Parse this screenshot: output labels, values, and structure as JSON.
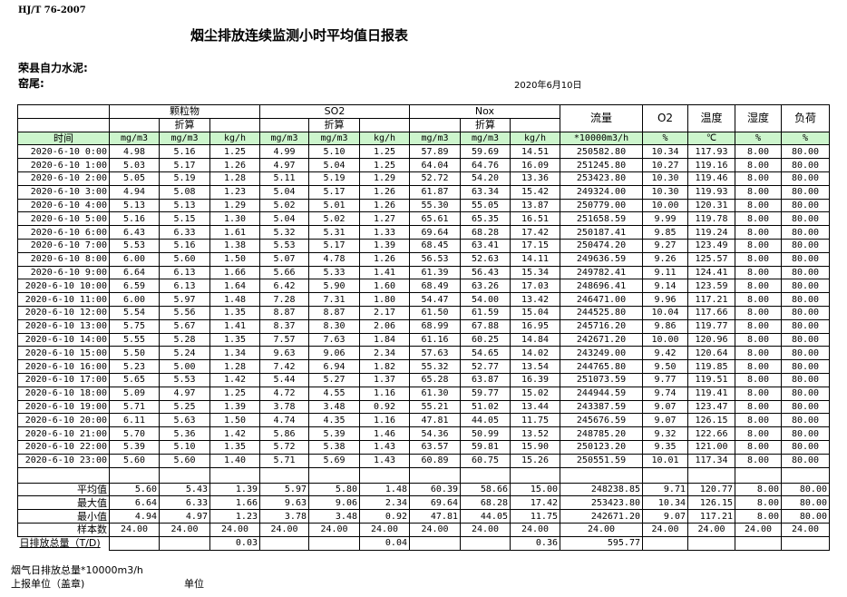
{
  "standard": "HJ/T  76-2007",
  "title": "烟尘排放连续监测小时平均值日报表",
  "company": "荣县自力水泥:",
  "kiln": "窑尾:",
  "date": "2020年6月10日",
  "header": {
    "groups": [
      "颗粒物",
      "SO2",
      "Nox"
    ],
    "converted": "折算",
    "flow": "流量",
    "o2": "O2",
    "temp": "温度",
    "humidity": "湿度",
    "load": "负荷",
    "time": "时间",
    "units": [
      "mg/m3",
      "mg/m3",
      "kg/h",
      "mg/m3",
      "mg/m3",
      "kg/h",
      "mg/m3",
      "mg/m3",
      "kg/h",
      "*10000m3/h",
      "%",
      "℃",
      "%",
      "%"
    ]
  },
  "rows": [
    [
      "2020-6-10 0:00",
      "4.98",
      "5.16",
      "1.25",
      "4.99",
      "5.10",
      "1.25",
      "57.89",
      "59.69",
      "14.51",
      "250582.80",
      "10.34",
      "117.93",
      "8.00",
      "80.00"
    ],
    [
      "2020-6-10 1:00",
      "5.03",
      "5.17",
      "1.26",
      "4.97",
      "5.04",
      "1.25",
      "64.04",
      "64.76",
      "16.09",
      "251245.80",
      "10.27",
      "119.16",
      "8.00",
      "80.00"
    ],
    [
      "2020-6-10 2:00",
      "5.05",
      "5.19",
      "1.28",
      "5.11",
      "5.19",
      "1.29",
      "52.72",
      "54.20",
      "13.36",
      "253423.80",
      "10.30",
      "119.46",
      "8.00",
      "80.00"
    ],
    [
      "2020-6-10 3:00",
      "4.94",
      "5.08",
      "1.23",
      "5.04",
      "5.17",
      "1.26",
      "61.87",
      "63.34",
      "15.42",
      "249324.00",
      "10.30",
      "119.93",
      "8.00",
      "80.00"
    ],
    [
      "2020-6-10 4:00",
      "5.13",
      "5.13",
      "1.29",
      "5.02",
      "5.01",
      "1.26",
      "55.30",
      "55.05",
      "13.87",
      "250779.00",
      "10.00",
      "120.31",
      "8.00",
      "80.00"
    ],
    [
      "2020-6-10 5:00",
      "5.16",
      "5.15",
      "1.30",
      "5.04",
      "5.02",
      "1.27",
      "65.61",
      "65.35",
      "16.51",
      "251658.59",
      "9.99",
      "119.78",
      "8.00",
      "80.00"
    ],
    [
      "2020-6-10 6:00",
      "6.43",
      "6.33",
      "1.61",
      "5.32",
      "5.31",
      "1.33",
      "69.64",
      "68.28",
      "17.42",
      "250187.41",
      "9.85",
      "119.24",
      "8.00",
      "80.00"
    ],
    [
      "2020-6-10 7:00",
      "5.53",
      "5.16",
      "1.38",
      "5.53",
      "5.17",
      "1.39",
      "68.45",
      "63.41",
      "17.15",
      "250474.20",
      "9.27",
      "123.49",
      "8.00",
      "80.00"
    ],
    [
      "2020-6-10 8:00",
      "6.00",
      "5.60",
      "1.50",
      "5.07",
      "4.78",
      "1.26",
      "56.53",
      "52.63",
      "14.11",
      "249636.59",
      "9.26",
      "125.57",
      "8.00",
      "80.00"
    ],
    [
      "2020-6-10 9:00",
      "6.64",
      "6.13",
      "1.66",
      "5.66",
      "5.33",
      "1.41",
      "61.39",
      "56.43",
      "15.34",
      "249782.41",
      "9.11",
      "124.41",
      "8.00",
      "80.00"
    ],
    [
      "2020-6-10 10:00",
      "6.59",
      "6.13",
      "1.64",
      "6.42",
      "5.90",
      "1.60",
      "68.49",
      "63.26",
      "17.03",
      "248696.41",
      "9.14",
      "123.59",
      "8.00",
      "80.00"
    ],
    [
      "2020-6-10 11:00",
      "6.00",
      "5.97",
      "1.48",
      "7.28",
      "7.31",
      "1.80",
      "54.47",
      "54.00",
      "13.42",
      "246471.00",
      "9.96",
      "117.21",
      "8.00",
      "80.00"
    ],
    [
      "2020-6-10 12:00",
      "5.54",
      "5.56",
      "1.35",
      "8.87",
      "8.87",
      "2.17",
      "61.50",
      "61.59",
      "15.04",
      "244525.80",
      "10.04",
      "117.66",
      "8.00",
      "80.00"
    ],
    [
      "2020-6-10 13:00",
      "5.75",
      "5.67",
      "1.41",
      "8.37",
      "8.30",
      "2.06",
      "68.99",
      "67.88",
      "16.95",
      "245716.20",
      "9.86",
      "119.77",
      "8.00",
      "80.00"
    ],
    [
      "2020-6-10 14:00",
      "5.55",
      "5.28",
      "1.35",
      "7.57",
      "7.63",
      "1.84",
      "61.16",
      "60.25",
      "14.84",
      "242671.20",
      "10.00",
      "120.96",
      "8.00",
      "80.00"
    ],
    [
      "2020-6-10 15:00",
      "5.50",
      "5.24",
      "1.34",
      "9.63",
      "9.06",
      "2.34",
      "57.63",
      "54.65",
      "14.02",
      "243249.00",
      "9.42",
      "120.64",
      "8.00",
      "80.00"
    ],
    [
      "2020-6-10 16:00",
      "5.23",
      "5.00",
      "1.28",
      "7.42",
      "6.94",
      "1.82",
      "55.32",
      "52.77",
      "13.54",
      "244765.80",
      "9.50",
      "119.85",
      "8.00",
      "80.00"
    ],
    [
      "2020-6-10 17:00",
      "5.65",
      "5.53",
      "1.42",
      "5.44",
      "5.27",
      "1.37",
      "65.28",
      "63.87",
      "16.39",
      "251073.59",
      "9.77",
      "119.51",
      "8.00",
      "80.00"
    ],
    [
      "2020-6-10 18:00",
      "5.09",
      "4.97",
      "1.25",
      "4.72",
      "4.55",
      "1.16",
      "61.30",
      "59.77",
      "15.02",
      "244944.59",
      "9.74",
      "119.41",
      "8.00",
      "80.00"
    ],
    [
      "2020-6-10 19:00",
      "5.71",
      "5.25",
      "1.39",
      "3.78",
      "3.48",
      "0.92",
      "55.21",
      "51.02",
      "13.44",
      "243387.59",
      "9.07",
      "123.47",
      "8.00",
      "80.00"
    ],
    [
      "2020-6-10 20:00",
      "6.11",
      "5.63",
      "1.50",
      "4.74",
      "4.35",
      "1.16",
      "47.81",
      "44.05",
      "11.75",
      "245676.59",
      "9.07",
      "126.15",
      "8.00",
      "80.00"
    ],
    [
      "2020-6-10 21:00",
      "5.70",
      "5.36",
      "1.42",
      "5.86",
      "5.39",
      "1.46",
      "54.36",
      "50.99",
      "13.52",
      "248785.20",
      "9.32",
      "122.66",
      "8.00",
      "80.00"
    ],
    [
      "2020-6-10 22:00",
      "5.39",
      "5.10",
      "1.35",
      "5.72",
      "5.38",
      "1.43",
      "63.57",
      "59.81",
      "15.90",
      "250123.20",
      "9.35",
      "121.00",
      "8.00",
      "80.00"
    ],
    [
      "2020-6-10 23:00",
      "5.60",
      "5.60",
      "1.40",
      "5.71",
      "5.69",
      "1.43",
      "60.89",
      "60.75",
      "15.26",
      "250551.59",
      "10.01",
      "117.34",
      "8.00",
      "80.00"
    ]
  ],
  "summary": [
    [
      "平均值",
      "5.60",
      "5.43",
      "1.39",
      "5.97",
      "5.80",
      "1.48",
      "60.39",
      "58.66",
      "15.00",
      "248238.85",
      "9.71",
      "120.77",
      "8.00",
      "80.00"
    ],
    [
      "最大值",
      "6.64",
      "6.33",
      "1.66",
      "9.63",
      "9.06",
      "2.34",
      "69.64",
      "68.28",
      "17.42",
      "253423.80",
      "10.34",
      "126.15",
      "8.00",
      "80.00"
    ],
    [
      "最小值",
      "4.94",
      "4.97",
      "1.23",
      "3.78",
      "3.48",
      "0.92",
      "47.81",
      "44.05",
      "11.75",
      "242671.20",
      "9.07",
      "117.21",
      "8.00",
      "80.00"
    ],
    [
      "样本数",
      "24.00",
      "24.00",
      "24.00",
      "24.00",
      "24.00",
      "24.00",
      "24.00",
      "24.00",
      "24.00",
      "24.00",
      "24.00",
      "24.00",
      "24.00",
      "24.00"
    ]
  ],
  "daily_total": [
    "日排放总量（T/D)",
    "",
    "",
    "0.03",
    "",
    "",
    "0.04",
    "",
    "",
    "0.36",
    "595.77",
    "",
    "",
    "",
    ""
  ],
  "footer": {
    "flue_gas_total": "烟气日排放总量*10000m3/h",
    "reporting_unit": "上报单位（盖章)",
    "unit": "单位"
  }
}
